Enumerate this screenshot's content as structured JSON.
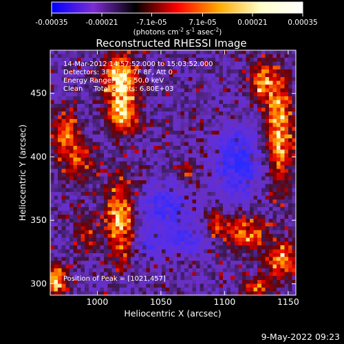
{
  "colorbar": {
    "tick_labels": [
      "-0.00035",
      "-0.00021",
      "-7.1e-05",
      "7.1e-05",
      "0.00021",
      "0.00035"
    ],
    "tick_values": [
      -0.00035,
      -0.00021,
      -7.1e-05,
      7.1e-05,
      0.00021,
      0.00035
    ],
    "min": -0.00035,
    "max": 0.00035,
    "units_label": "(photons cm",
    "units_exp1": "-2",
    "units_mid": " s",
    "units_exp2": "-1",
    "units_mid2": " asec",
    "units_exp3": "-2",
    "units_close": ")",
    "gradient_stops": [
      "#0000ff",
      "#7d2cd3",
      "#000000",
      "#ff0000",
      "#ffaa00",
      "#ffffc8",
      "#ffffff"
    ]
  },
  "chart_data": {
    "type": "heatmap",
    "title": "Reconstructed RHESSI Image",
    "xlabel": "Heliocentric X (arcsec)",
    "ylabel": "Heliocentric Y (arcsec)",
    "xlim": [
      963,
      1156
    ],
    "ylim": [
      291,
      484
    ],
    "x_ticks": [
      1000,
      1050,
      1100,
      1150
    ],
    "y_ticks": [
      300,
      350,
      400,
      450
    ],
    "annotations": [
      "14-Mar-2012 14:57:52.000 to 15:03:52.000",
      "Detectors: 3F 5F 6F 7F 8F, Att 0",
      "Energy Range: 6.0 - 50.0 keV",
      "Clean     Total counts: 6.80E+03"
    ],
    "peak_label": "Position of Peak = [1021,457]",
    "peak": [
      1021,
      457
    ],
    "hot_regions": [
      {
        "x": 1018,
        "y": 460,
        "sx": 9,
        "sy": 14,
        "amp": 1.0
      },
      {
        "x": 1020,
        "y": 432,
        "sx": 8,
        "sy": 10,
        "amp": 0.75
      },
      {
        "x": 975,
        "y": 420,
        "sx": 8,
        "sy": 12,
        "amp": 0.6
      },
      {
        "x": 1018,
        "y": 350,
        "sx": 8,
        "sy": 22,
        "amp": 0.8
      },
      {
        "x": 985,
        "y": 395,
        "sx": 9,
        "sy": 10,
        "amp": 0.5
      },
      {
        "x": 1143,
        "y": 420,
        "sx": 7,
        "sy": 30,
        "amp": 0.85
      },
      {
        "x": 1130,
        "y": 460,
        "sx": 7,
        "sy": 10,
        "amp": 0.7
      },
      {
        "x": 1115,
        "y": 340,
        "sx": 12,
        "sy": 9,
        "amp": 0.65
      },
      {
        "x": 1145,
        "y": 318,
        "sx": 8,
        "sy": 10,
        "amp": 0.7
      },
      {
        "x": 1125,
        "y": 296,
        "sx": 7,
        "sy": 6,
        "amp": 0.6
      },
      {
        "x": 968,
        "y": 303,
        "sx": 6,
        "sy": 8,
        "amp": 0.9
      },
      {
        "x": 1070,
        "y": 390,
        "sx": 5,
        "sy": 5,
        "amp": 0.45
      },
      {
        "x": 1093,
        "y": 348,
        "sx": 5,
        "sy": 8,
        "amp": 0.45
      },
      {
        "x": 990,
        "y": 340,
        "sx": 6,
        "sy": 10,
        "amp": 0.4
      }
    ],
    "cold_regions": [
      {
        "x": 1110,
        "y": 395,
        "sx": 12,
        "sy": 18,
        "amp": 0.8
      },
      {
        "x": 1052,
        "y": 360,
        "sx": 14,
        "sy": 12,
        "amp": 0.6
      },
      {
        "x": 1070,
        "y": 335,
        "sx": 12,
        "sy": 8,
        "amp": 0.5
      },
      {
        "x": 1040,
        "y": 330,
        "sx": 10,
        "sy": 8,
        "amp": 0.4
      }
    ]
  },
  "footer": {
    "date": "9-May-2022 09:23"
  }
}
